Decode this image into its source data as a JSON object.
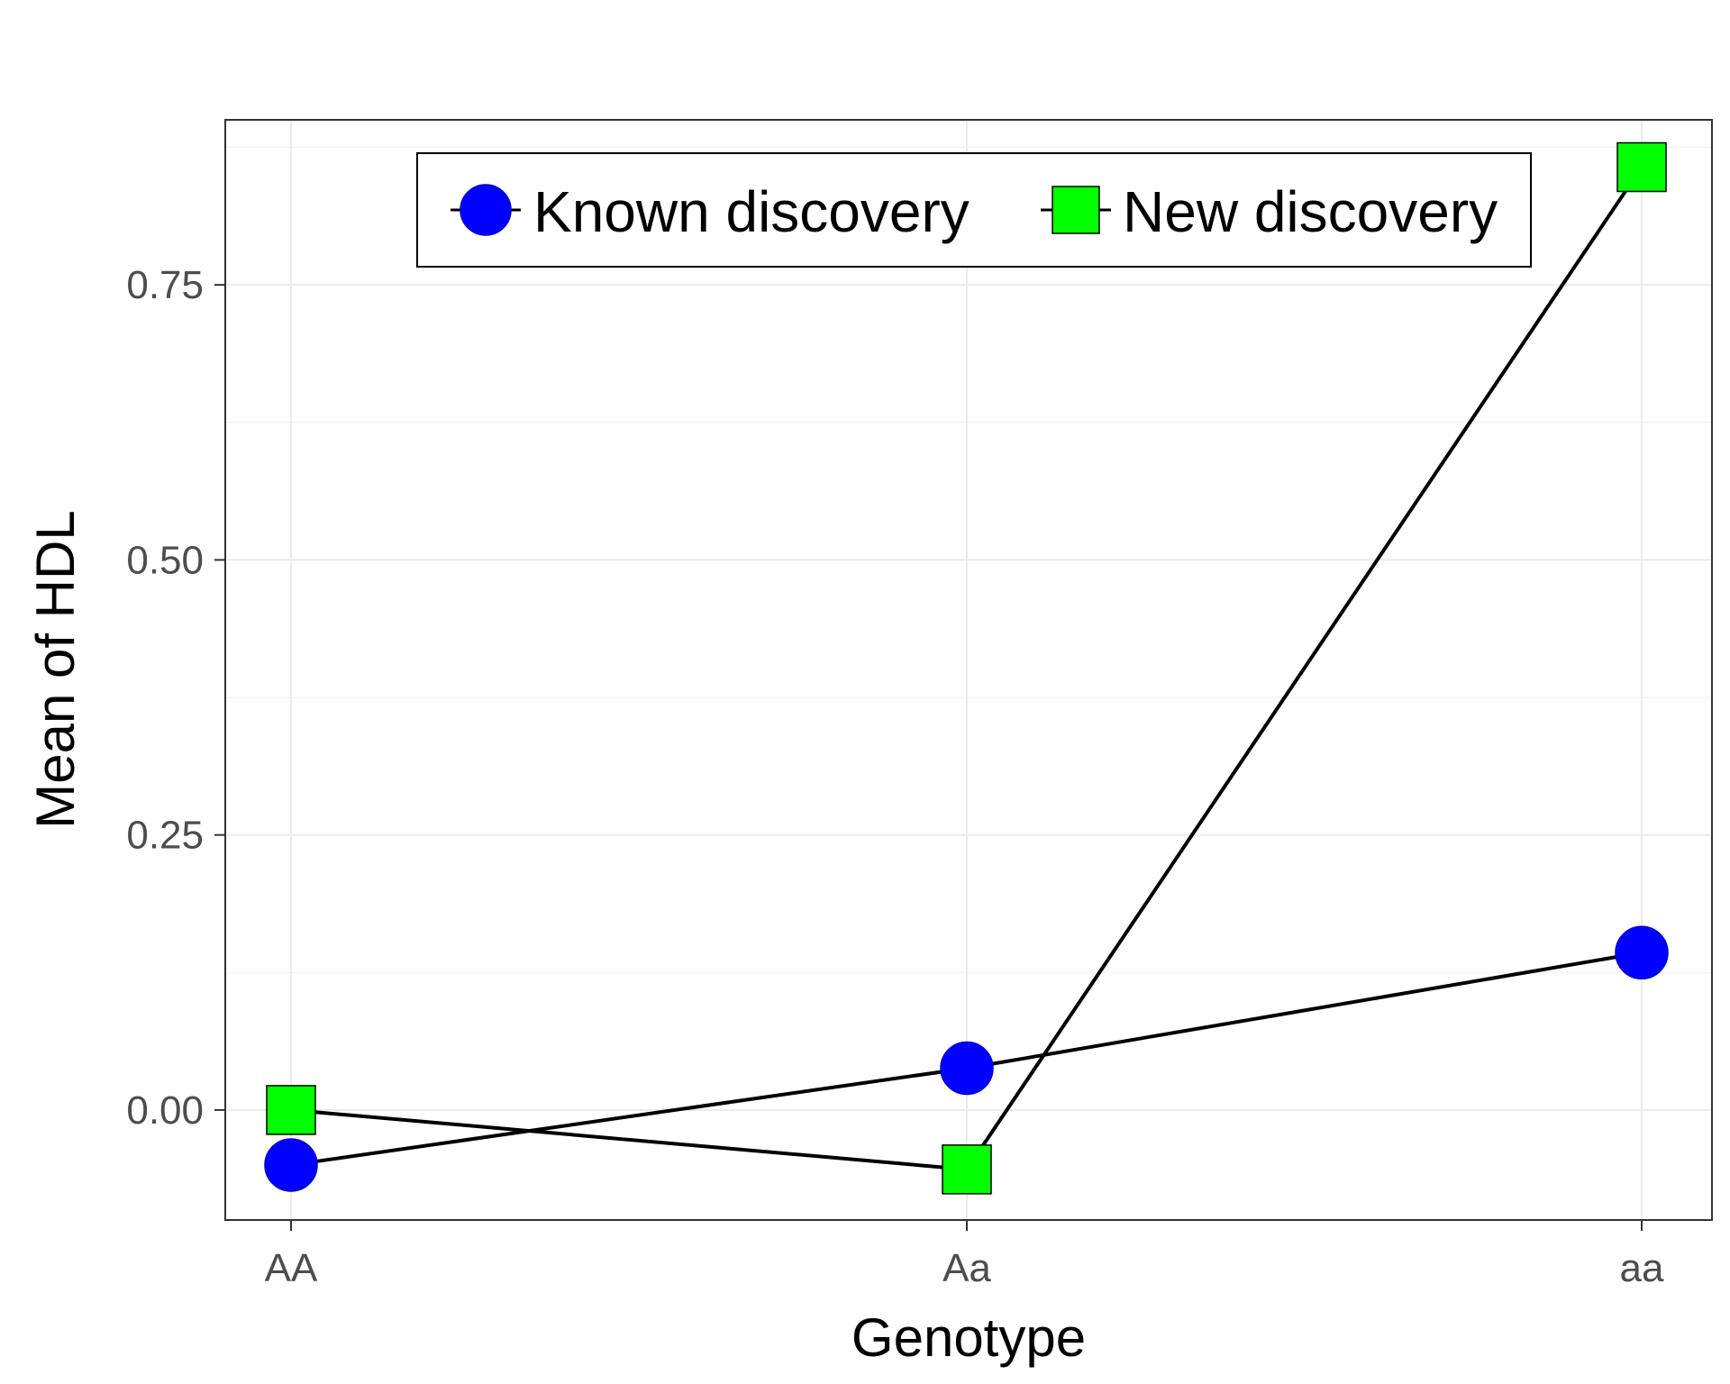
{
  "chart_data": {
    "type": "line",
    "title": "",
    "xlabel": "Genotype",
    "ylabel": "Mean of HDL",
    "categories": [
      "AA",
      "Aa",
      "aa"
    ],
    "ylim": [
      -0.1,
      0.9
    ],
    "yticks": [
      0.0,
      0.25,
      0.5,
      0.75
    ],
    "ytick_labels": [
      "0.00",
      "0.25",
      "0.50",
      "0.75"
    ],
    "grid": true,
    "legend_position": "top-right",
    "series": [
      {
        "name": "Known discovery",
        "marker": "circle",
        "color": "#0000ff",
        "values": [
          -0.05,
          0.038,
          0.143
        ]
      },
      {
        "name": "New discovery",
        "marker": "square",
        "color": "#00ff00",
        "values": [
          0.0,
          -0.054,
          0.857
        ]
      }
    ]
  }
}
